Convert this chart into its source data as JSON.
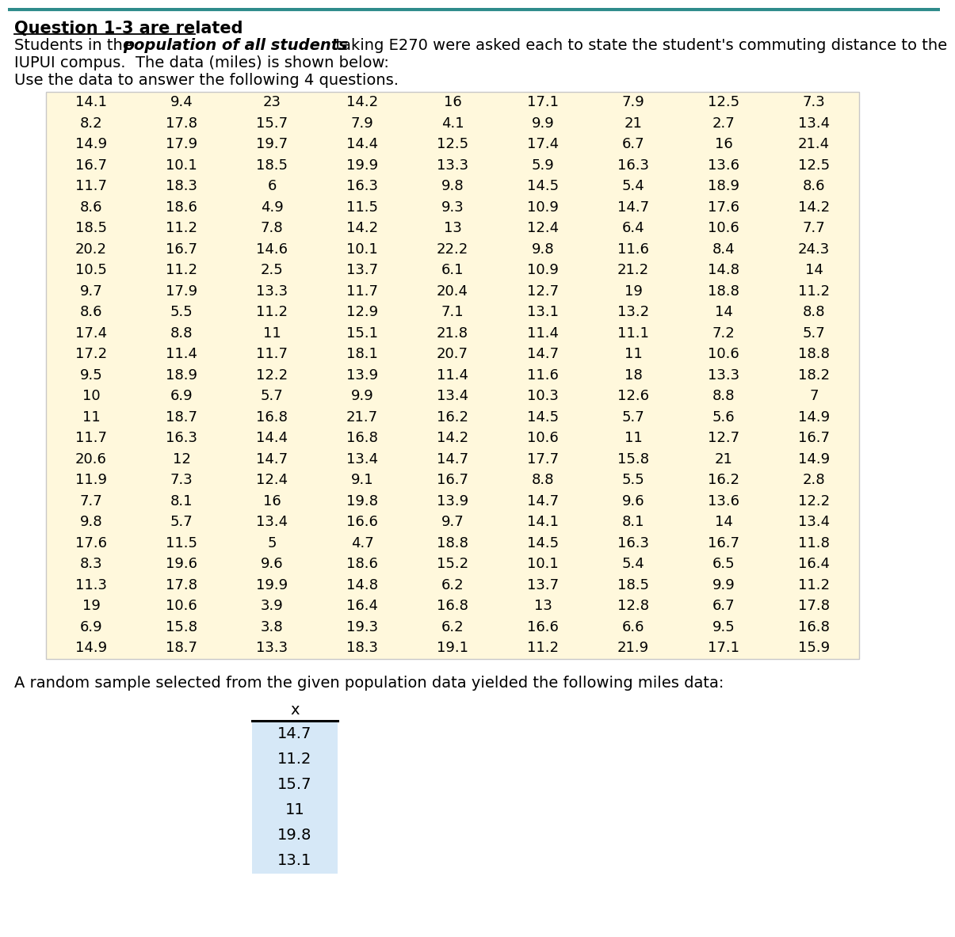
{
  "title_line1": "Question 1-3 are related",
  "prefix_text": "Students in the ",
  "bold_text": "population of all students",
  "suffix_text": "  taking E270 were asked each to state the student's commuting distance to the",
  "line2_text": "IUPUI compus.  The data (miles) is shown below:",
  "line3_text": "Use the data to answer the following 4 questions.",
  "population_data": [
    [
      14.1,
      9.4,
      23,
      14.2,
      16,
      17.1,
      7.9,
      12.5,
      7.3
    ],
    [
      8.2,
      17.8,
      15.7,
      7.9,
      4.1,
      9.9,
      21,
      2.7,
      13.4
    ],
    [
      14.9,
      17.9,
      19.7,
      14.4,
      12.5,
      17.4,
      6.7,
      16,
      21.4
    ],
    [
      16.7,
      10.1,
      18.5,
      19.9,
      13.3,
      5.9,
      16.3,
      13.6,
      12.5
    ],
    [
      11.7,
      18.3,
      6,
      16.3,
      9.8,
      14.5,
      5.4,
      18.9,
      8.6
    ],
    [
      8.6,
      18.6,
      4.9,
      11.5,
      9.3,
      10.9,
      14.7,
      17.6,
      14.2
    ],
    [
      18.5,
      11.2,
      7.8,
      14.2,
      13,
      12.4,
      6.4,
      10.6,
      7.7
    ],
    [
      20.2,
      16.7,
      14.6,
      10.1,
      22.2,
      9.8,
      11.6,
      8.4,
      24.3
    ],
    [
      10.5,
      11.2,
      2.5,
      13.7,
      6.1,
      10.9,
      21.2,
      14.8,
      14
    ],
    [
      9.7,
      17.9,
      13.3,
      11.7,
      20.4,
      12.7,
      19,
      18.8,
      11.2
    ],
    [
      8.6,
      5.5,
      11.2,
      12.9,
      7.1,
      13.1,
      13.2,
      14,
      8.8
    ],
    [
      17.4,
      8.8,
      11,
      15.1,
      21.8,
      11.4,
      11.1,
      7.2,
      5.7
    ],
    [
      17.2,
      11.4,
      11.7,
      18.1,
      20.7,
      14.7,
      11,
      10.6,
      18.8
    ],
    [
      9.5,
      18.9,
      12.2,
      13.9,
      11.4,
      11.6,
      18,
      13.3,
      18.2
    ],
    [
      10,
      6.9,
      5.7,
      9.9,
      13.4,
      10.3,
      12.6,
      8.8,
      7
    ],
    [
      11,
      18.7,
      16.8,
      21.7,
      16.2,
      14.5,
      5.7,
      5.6,
      14.9
    ],
    [
      11.7,
      16.3,
      14.4,
      16.8,
      14.2,
      10.6,
      11,
      12.7,
      16.7
    ],
    [
      20.6,
      12,
      14.7,
      13.4,
      14.7,
      17.7,
      15.8,
      21,
      14.9
    ],
    [
      11.9,
      7.3,
      12.4,
      9.1,
      16.7,
      8.8,
      5.5,
      16.2,
      2.8
    ],
    [
      7.7,
      8.1,
      16,
      19.8,
      13.9,
      14.7,
      9.6,
      13.6,
      12.2
    ],
    [
      9.8,
      5.7,
      13.4,
      16.6,
      9.7,
      14.1,
      8.1,
      14,
      13.4
    ],
    [
      17.6,
      11.5,
      5,
      4.7,
      18.8,
      14.5,
      16.3,
      16.7,
      11.8
    ],
    [
      8.3,
      19.6,
      9.6,
      18.6,
      15.2,
      10.1,
      5.4,
      6.5,
      16.4
    ],
    [
      11.3,
      17.8,
      19.9,
      14.8,
      6.2,
      13.7,
      18.5,
      9.9,
      11.2
    ],
    [
      19,
      10.6,
      3.9,
      16.4,
      16.8,
      13,
      12.8,
      6.7,
      17.8
    ],
    [
      6.9,
      15.8,
      3.8,
      19.3,
      6.2,
      16.6,
      6.6,
      9.5,
      16.8
    ],
    [
      14.9,
      18.7,
      13.3,
      18.3,
      19.1,
      11.2,
      21.9,
      17.1,
      15.9
    ]
  ],
  "sample_data": [
    14.7,
    11.2,
    15.7,
    11,
    19.8,
    13.1
  ],
  "sample_header": "x",
  "sample_text": "A random sample selected from the given population data yielded the following miles data:",
  "pop_bg_color": "#FFF8DC",
  "sample_bg_color": "#D6E8F7",
  "font_size_table": 13,
  "font_size_text": 14,
  "font_size_title": 15
}
